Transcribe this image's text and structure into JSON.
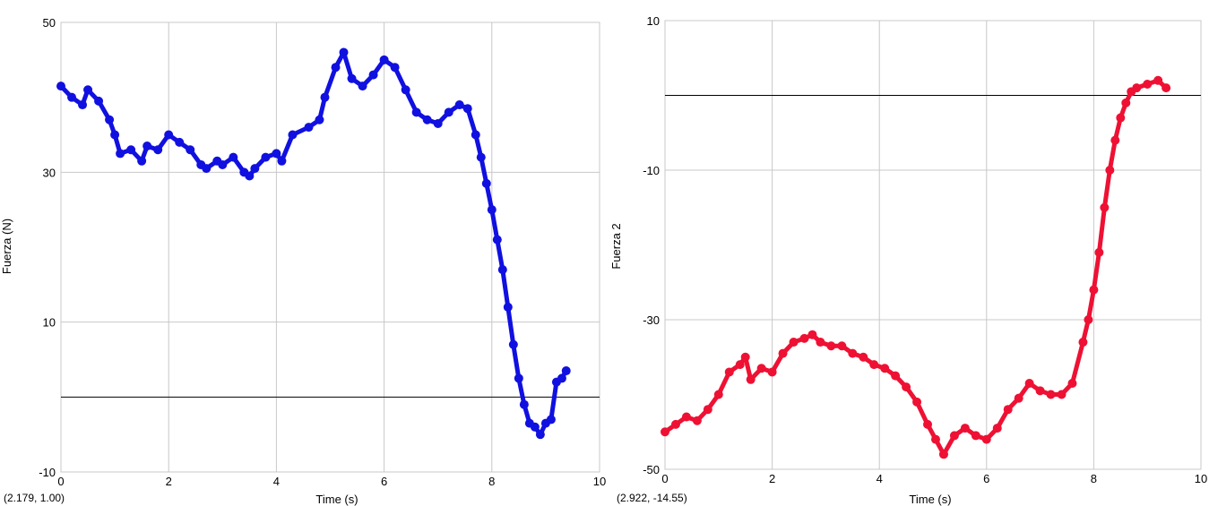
{
  "chart_data": [
    {
      "type": "scatter",
      "xlabel": "Time (s)",
      "ylabel": "Fuerza (N)",
      "xlim": [
        0,
        10
      ],
      "ylim": [
        -10,
        50
      ],
      "x_ticks": [
        "0",
        "2",
        "4",
        "6",
        "8",
        "10"
      ],
      "y_ticks": [
        "-10",
        "10",
        "30",
        "50"
      ],
      "grid": true,
      "color": "#1010e0",
      "readout": "(2.179, 1.00)",
      "series": [
        {
          "x": [
            0,
            0.2,
            0.4,
            0.5,
            0.7,
            0.9,
            1.0,
            1.1,
            1.3,
            1.5,
            1.6,
            1.8,
            2.0,
            2.2,
            2.4,
            2.6,
            2.7,
            2.9,
            3.0,
            3.2,
            3.4,
            3.5,
            3.6,
            3.8,
            4.0,
            4.1,
            4.3,
            4.6,
            4.8,
            4.9,
            5.1,
            5.25,
            5.4,
            5.6,
            5.8,
            6.0,
            6.2,
            6.4,
            6.6,
            6.8,
            7.0,
            7.2,
            7.4,
            7.55,
            7.7,
            7.8,
            7.9,
            8.0,
            8.1,
            8.2,
            8.3,
            8.4,
            8.5,
            8.6,
            8.7,
            8.8,
            8.9,
            9.0,
            9.1,
            9.2,
            9.3,
            9.38
          ],
          "y": [
            41.5,
            40,
            39,
            41,
            39.5,
            37,
            35,
            32.5,
            33,
            31.5,
            33.5,
            33,
            35,
            34,
            33,
            31,
            30.5,
            31.5,
            31,
            32,
            30,
            29.5,
            30.5,
            32,
            32.5,
            31.5,
            35,
            36,
            37,
            40,
            44,
            46,
            42.5,
            41.5,
            43,
            45,
            44,
            41,
            38,
            37,
            36.5,
            38,
            39,
            38.5,
            35,
            32,
            28.5,
            25,
            21,
            17,
            12,
            7,
            2.5,
            -1,
            -3.5,
            -4,
            -5,
            -3.5,
            -3,
            2,
            2.5,
            3.5
          ]
        }
      ]
    },
    {
      "type": "scatter",
      "xlabel": "Time (s)",
      "ylabel": "Fuerza 2",
      "xlim": [
        0,
        10
      ],
      "ylim": [
        -50,
        10
      ],
      "x_ticks": [
        "0",
        "2",
        "4",
        "6",
        "8",
        "10"
      ],
      "y_ticks": [
        "-50",
        "-30",
        "-10",
        "10"
      ],
      "grid": true,
      "color": "#ee1133",
      "readout": "(2.922, -14.55)",
      "series": [
        {
          "x": [
            0,
            0.2,
            0.4,
            0.6,
            0.8,
            1.0,
            1.2,
            1.4,
            1.5,
            1.6,
            1.8,
            2.0,
            2.2,
            2.4,
            2.6,
            2.75,
            2.9,
            3.1,
            3.3,
            3.5,
            3.7,
            3.9,
            4.1,
            4.3,
            4.5,
            4.7,
            4.9,
            5.05,
            5.2,
            5.4,
            5.6,
            5.8,
            6.0,
            6.2,
            6.4,
            6.6,
            6.8,
            7.0,
            7.2,
            7.4,
            7.6,
            7.8,
            7.9,
            8.0,
            8.1,
            8.2,
            8.3,
            8.4,
            8.5,
            8.6,
            8.7,
            8.8,
            9.0,
            9.2,
            9.35
          ],
          "y": [
            -45,
            -44,
            -43,
            -43.5,
            -42,
            -40,
            -37,
            -36,
            -35,
            -38,
            -36.5,
            -37,
            -34.5,
            -33,
            -32.5,
            -32,
            -33,
            -33.5,
            -33.5,
            -34.5,
            -35,
            -36,
            -36.5,
            -37.5,
            -39,
            -41,
            -44,
            -46,
            -48,
            -45.5,
            -44.5,
            -45.5,
            -46,
            -44.5,
            -42,
            -40.5,
            -38.5,
            -39.5,
            -40,
            -40,
            -38.5,
            -33,
            -30,
            -26,
            -21,
            -15,
            -10,
            -6,
            -3,
            -1,
            0.5,
            1,
            1.5,
            2,
            1
          ]
        }
      ]
    }
  ]
}
